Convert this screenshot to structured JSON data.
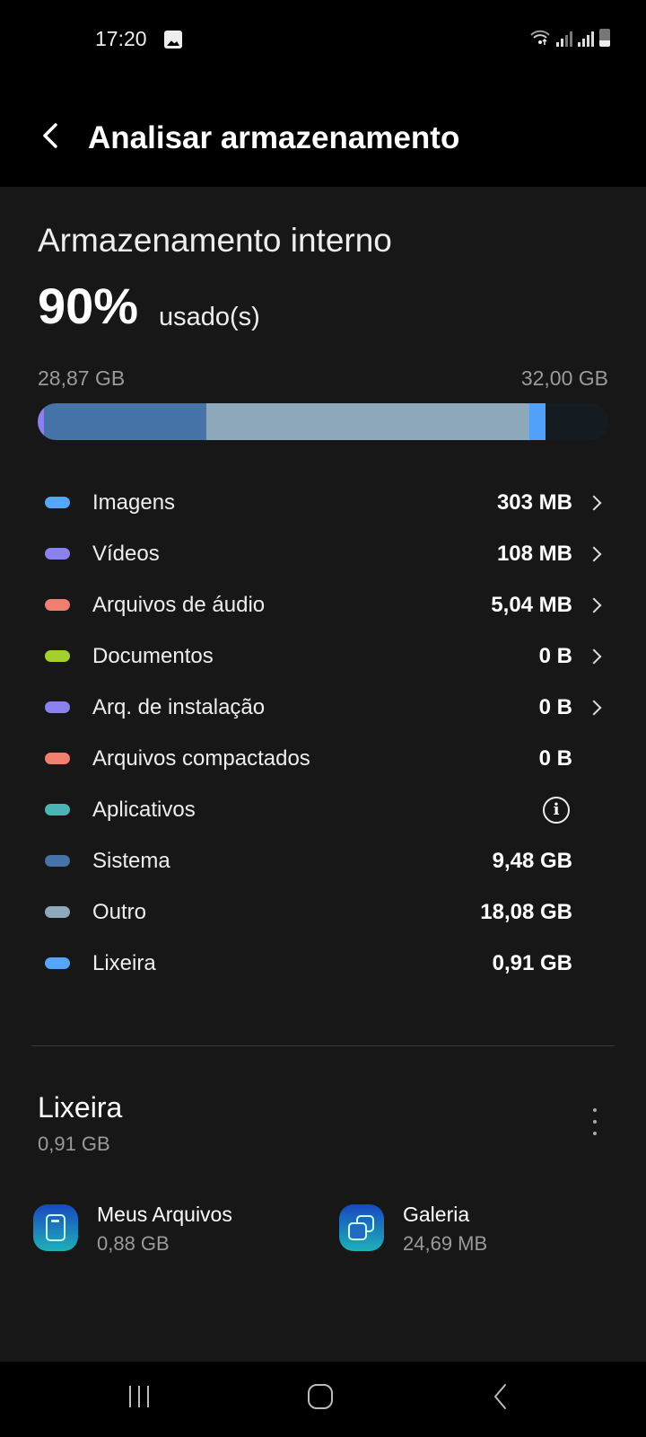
{
  "status_bar": {
    "time": "17:20",
    "icons": [
      "gallery-icon",
      "wifi-icon",
      "signal-icon",
      "signal-icon",
      "battery-icon"
    ]
  },
  "header": {
    "title": "Analisar armazenamento",
    "back_icon": "back-arrow-icon"
  },
  "storage": {
    "title": "Armazenamento interno",
    "percent": "90%",
    "used_label": "usado(s)",
    "used": "28,87 GB",
    "total": "32,00 GB",
    "bar": [
      {
        "name": "Sistema",
        "gb": 9.48,
        "color": "#4673a8"
      },
      {
        "name": "Outro",
        "gb": 18.08,
        "color": "#8fa9bc"
      },
      {
        "name": "Lixeira",
        "gb": 0.91,
        "color": "#51a0fa"
      }
    ],
    "bar_small_start_color": "#8a80ee",
    "bar_empty_color": "#141c22"
  },
  "categories": [
    {
      "label": "Imagens",
      "value": "303 MB",
      "color": "#55a6fb",
      "chevron": true
    },
    {
      "label": "Vídeos",
      "value": "108 MB",
      "color": "#8a80ee",
      "chevron": true
    },
    {
      "label": "Arquivos de áudio",
      "value": "5,04 MB",
      "color": "#f07f70",
      "chevron": true
    },
    {
      "label": "Documentos",
      "value": "0 B",
      "color": "#a5cf2e",
      "chevron": true
    },
    {
      "label": "Arq. de instalação",
      "value": "0 B",
      "color": "#8a80ee",
      "chevron": true
    },
    {
      "label": "Arquivos compactados",
      "value": "0 B",
      "color": "#f07f70",
      "chevron": false
    },
    {
      "label": "Aplicativos",
      "value": "",
      "color": "#4bb5b5",
      "chevron": false,
      "info": "i"
    },
    {
      "label": "Sistema",
      "value": "9,48 GB",
      "color": "#4673a8",
      "chevron": false
    },
    {
      "label": "Outro",
      "value": "18,08 GB",
      "color": "#8fa9bc",
      "chevron": false
    },
    {
      "label": "Lixeira",
      "value": "0,91 GB",
      "color": "#55a6fb",
      "chevron": false
    }
  ],
  "trash": {
    "title": "Lixeira",
    "size": "0,91 GB",
    "apps": [
      {
        "name": "Meus Arquivos",
        "size": "0,88 GB",
        "icon": "my-files-icon"
      },
      {
        "name": "Galeria",
        "size": "24,69 MB",
        "icon": "gallery-app-icon"
      }
    ]
  },
  "nav": {
    "icons": [
      "recent-apps-icon",
      "home-icon",
      "back-icon"
    ]
  }
}
